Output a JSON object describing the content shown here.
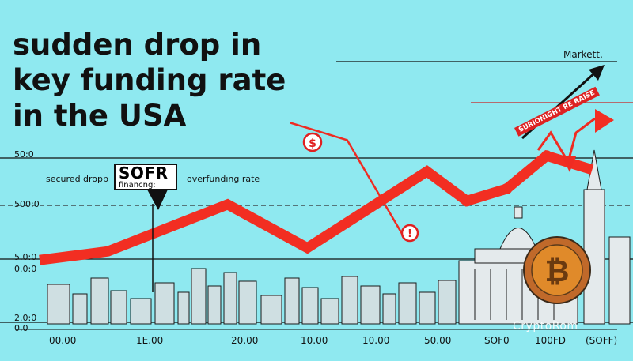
{
  "title_lines": [
    "sudden drop in",
    "key funding rate",
    "in the USA"
  ],
  "market_label": "Markett,",
  "callout": {
    "big": "SOFR",
    "small": "financng:"
  },
  "annotations": {
    "left": "secured dropp",
    "right": "overfundıng rate"
  },
  "banner_text": "SURIONIGHT RE RAISE",
  "watermark": "CryptoRom",
  "colors": {
    "background": "#8fe9f0",
    "series": "#f22e22",
    "grid": "#111111",
    "coin": "#e08a2a"
  },
  "chart_data": {
    "type": "line",
    "title": "sudden drop in key funding rate in the USA",
    "xlabel": "",
    "ylabel": "",
    "y_tick_labels": [
      "50:0",
      "500:0",
      "5.0:0",
      "0.0:0",
      "2.0:0",
      "0.0"
    ],
    "x_tick_labels": [
      "00.00",
      "1E.00",
      "20.00",
      "10.00",
      "10.00",
      "50.00",
      "SOF0",
      "100FD",
      "(SOFF)"
    ],
    "series": [
      {
        "values": [
          [
            0,
            0.14
          ],
          [
            0.12,
            0.19
          ],
          [
            0.33,
            0.46
          ],
          [
            0.47,
            0.21
          ],
          [
            0.68,
            0.65
          ],
          [
            0.75,
            0.48
          ],
          [
            0.82,
            0.55
          ],
          [
            0.89,
            0.74
          ],
          [
            0.97,
            0.66
          ]
        ]
      },
      {
        "values": [
          [
            0.54,
            0.83
          ],
          [
            0.64,
            0.27
          ]
        ]
      }
    ],
    "icons": [
      "dollar-icon",
      "warning-icon"
    ],
    "grid": true
  }
}
